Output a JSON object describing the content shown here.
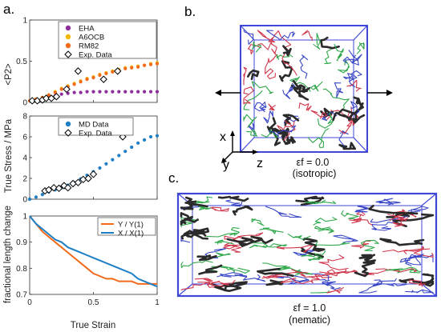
{
  "panels": {
    "a": "a.",
    "b": "b.",
    "c": "c."
  },
  "shared_xlabel": "True Strain",
  "chart_data": [
    {
      "type": "scatter",
      "ylabel": "<P2>",
      "xlim": [
        0,
        1
      ],
      "ylim": [
        0,
        1
      ],
      "yticks": [
        "0",
        "0.5",
        "1"
      ],
      "xticklabels_visible": false,
      "legend": "top-left",
      "series": [
        {
          "name": "EHA",
          "color": "#8e2d9c",
          "marker": "dot",
          "x": [
            0.0,
            0.05,
            0.1,
            0.15,
            0.2,
            0.25,
            0.3,
            0.35,
            0.4,
            0.45,
            0.5,
            0.55,
            0.6,
            0.65,
            0.7,
            0.75,
            0.8,
            0.85,
            0.9,
            0.95,
            1.0
          ],
          "y": [
            0.02,
            0.03,
            0.04,
            0.06,
            0.08,
            0.1,
            0.11,
            0.12,
            0.12,
            0.13,
            0.13,
            0.13,
            0.13,
            0.13,
            0.13,
            0.13,
            0.13,
            0.13,
            0.13,
            0.13,
            0.13
          ]
        },
        {
          "name": "A6OCB",
          "color": "#f5b700",
          "marker": "dot",
          "x": [
            0.0,
            0.05,
            0.1,
            0.15,
            0.2,
            0.25,
            0.3,
            0.35,
            0.4,
            0.45,
            0.5,
            0.55,
            0.6,
            0.65,
            0.7,
            0.75,
            0.8,
            0.85,
            0.9,
            0.95,
            1.0
          ],
          "y": [
            0.02,
            0.04,
            0.06,
            0.09,
            0.13,
            0.17,
            0.2,
            0.23,
            0.26,
            0.29,
            0.31,
            0.34,
            0.36,
            0.38,
            0.4,
            0.42,
            0.43,
            0.44,
            0.45,
            0.47,
            0.48
          ]
        },
        {
          "name": "RM82",
          "color": "#f26a1b",
          "marker": "dot",
          "x": [
            0.0,
            0.05,
            0.1,
            0.15,
            0.2,
            0.25,
            0.3,
            0.35,
            0.4,
            0.45,
            0.5,
            0.55,
            0.6,
            0.65,
            0.7,
            0.75,
            0.8,
            0.85,
            0.9,
            0.95,
            1.0
          ],
          "y": [
            0.02,
            0.04,
            0.06,
            0.09,
            0.12,
            0.16,
            0.19,
            0.22,
            0.25,
            0.28,
            0.3,
            0.33,
            0.35,
            0.37,
            0.39,
            0.41,
            0.42,
            0.43,
            0.45,
            0.46,
            0.47
          ]
        },
        {
          "name": "Exp. Data",
          "color": "#000000",
          "marker": "diamond-open",
          "x": [
            0.02,
            0.06,
            0.1,
            0.13,
            0.17,
            0.21,
            0.29,
            0.38,
            0.58,
            0.69
          ],
          "y": [
            0.02,
            0.02,
            0.03,
            0.05,
            0.05,
            0.07,
            0.16,
            0.38,
            0.28,
            0.38
          ]
        }
      ]
    },
    {
      "type": "scatter",
      "ylabel": "True Stress / MPa",
      "xlim": [
        0,
        1
      ],
      "ylim": [
        0,
        8
      ],
      "yticks": [
        "0",
        "2",
        "4",
        "6",
        "8"
      ],
      "xticklabels_visible": false,
      "legend": "top-left",
      "series": [
        {
          "name": "MD Data",
          "color": "#1e7fc4",
          "marker": "dot",
          "x": [
            0.0,
            0.05,
            0.1,
            0.15,
            0.2,
            0.25,
            0.3,
            0.35,
            0.4,
            0.45,
            0.5,
            0.55,
            0.6,
            0.65,
            0.7,
            0.75,
            0.8,
            0.85,
            0.9,
            0.95,
            1.0
          ],
          "y": [
            0.0,
            0.2,
            0.45,
            0.7,
            0.9,
            1.1,
            1.35,
            1.6,
            1.95,
            2.3,
            2.65,
            3.0,
            3.4,
            3.8,
            4.2,
            4.6,
            5.0,
            5.4,
            5.7,
            6.0,
            6.1
          ]
        },
        {
          "name": "Exp. Data",
          "color": "#000000",
          "marker": "diamond-open",
          "x": [
            0.12,
            0.15,
            0.19,
            0.23,
            0.27,
            0.3,
            0.34,
            0.38,
            0.42,
            0.46,
            0.5,
            0.73
          ],
          "y": [
            0.8,
            0.9,
            1.1,
            1.05,
            1.3,
            1.1,
            1.5,
            1.6,
            1.9,
            2.0,
            2.4,
            6.0
          ]
        }
      ]
    },
    {
      "type": "line",
      "ylabel": "fractional length change",
      "xlabel": "True Strain",
      "xlim": [
        0,
        1
      ],
      "ylim": [
        0.7,
        1.0
      ],
      "xticks": [
        "0",
        "0.5",
        "1"
      ],
      "yticks": [
        "0.7",
        "0.8",
        "0.9",
        "1"
      ],
      "legend": "top-right",
      "series": [
        {
          "name": "Y / Y(1)",
          "color": "#f26a1b",
          "x": [
            0.0,
            0.05,
            0.1,
            0.15,
            0.2,
            0.25,
            0.3,
            0.35,
            0.4,
            0.45,
            0.5,
            0.55,
            0.6,
            0.65,
            0.7,
            0.75,
            0.8,
            0.85,
            0.9,
            0.95,
            1.0
          ],
          "y": [
            1.0,
            0.97,
            0.94,
            0.92,
            0.9,
            0.88,
            0.86,
            0.84,
            0.82,
            0.8,
            0.78,
            0.77,
            0.76,
            0.76,
            0.75,
            0.75,
            0.75,
            0.74,
            0.74,
            0.74,
            0.74
          ]
        },
        {
          "name": "X / X(1)",
          "color": "#1e7fc4",
          "x": [
            0.0,
            0.05,
            0.1,
            0.15,
            0.2,
            0.25,
            0.3,
            0.35,
            0.4,
            0.45,
            0.5,
            0.55,
            0.6,
            0.65,
            0.7,
            0.75,
            0.8,
            0.85,
            0.9,
            0.95,
            1.0
          ],
          "y": [
            1.0,
            0.97,
            0.95,
            0.93,
            0.91,
            0.9,
            0.88,
            0.87,
            0.86,
            0.85,
            0.84,
            0.83,
            0.82,
            0.81,
            0.8,
            0.79,
            0.78,
            0.76,
            0.75,
            0.74,
            0.73
          ]
        }
      ]
    }
  ],
  "snapshot_b": {
    "axes": {
      "x": "x",
      "y": "y",
      "z": "z"
    },
    "strain_label": "εf = 0.0",
    "state_label": "(isotropic)"
  },
  "snapshot_c": {
    "strain_label": "εf = 1.0",
    "state_label": "(nematic)"
  },
  "colors": {
    "box": "#3f47d8",
    "chain_dark": "#2a2a2a",
    "chain_red": "#d0364b",
    "chain_green": "#2fa84a",
    "chain_blue": "#3a48c7"
  }
}
